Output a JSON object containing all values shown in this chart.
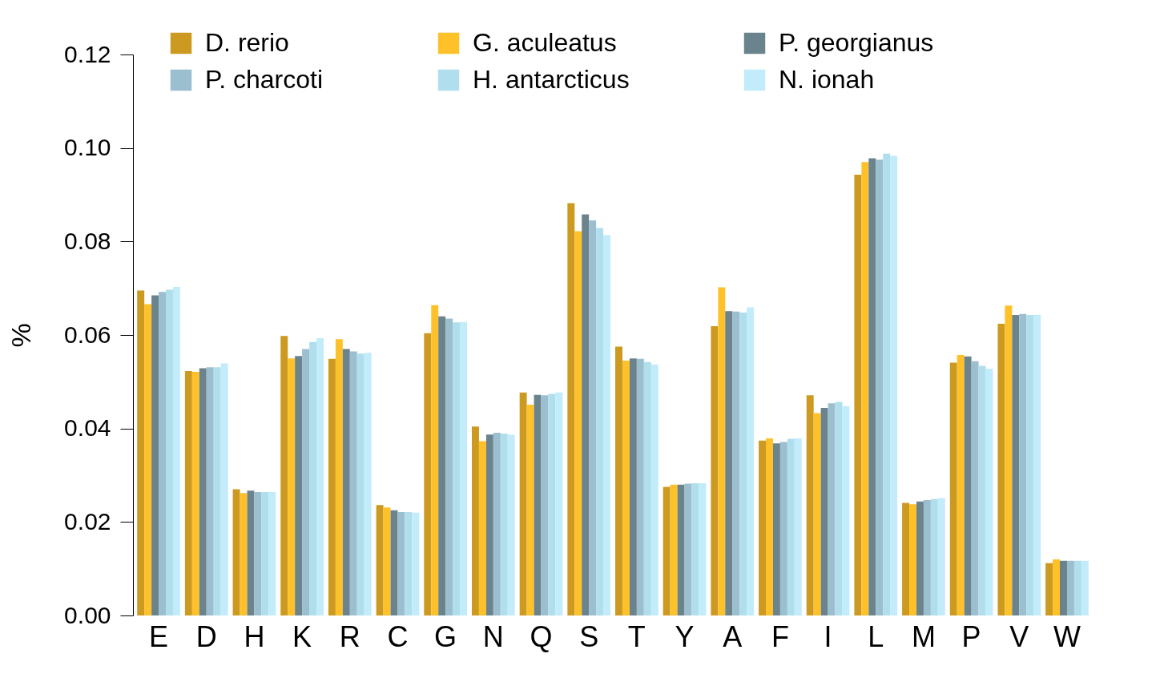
{
  "chart_data": {
    "type": "bar",
    "ylabel": "%",
    "categories": [
      "E",
      "D",
      "H",
      "K",
      "R",
      "C",
      "G",
      "N",
      "Q",
      "S",
      "T",
      "Y",
      "A",
      "F",
      "I",
      "L",
      "M",
      "P",
      "V",
      "W"
    ],
    "series": [
      {
        "name": "D. rerio",
        "color": "#cc9a20",
        "values": [
          0.0695,
          0.0523,
          0.027,
          0.0598,
          0.0549,
          0.0236,
          0.0604,
          0.0404,
          0.0477,
          0.0882,
          0.0575,
          0.0275,
          0.0619,
          0.0374,
          0.0471,
          0.0943,
          0.0241,
          0.0541,
          0.0624,
          0.0112
        ]
      },
      {
        "name": "G. aculeatus",
        "color": "#ffc12a",
        "values": [
          0.0666,
          0.0521,
          0.0262,
          0.055,
          0.0591,
          0.0231,
          0.0664,
          0.0373,
          0.0451,
          0.0822,
          0.0545,
          0.028,
          0.0702,
          0.0379,
          0.0433,
          0.097,
          0.0238,
          0.0557,
          0.0663,
          0.012
        ]
      },
      {
        "name": "P. georgianus",
        "color": "#6a838c",
        "values": [
          0.0685,
          0.0529,
          0.0267,
          0.0555,
          0.057,
          0.0225,
          0.064,
          0.0387,
          0.0472,
          0.0858,
          0.055,
          0.028,
          0.0651,
          0.0368,
          0.0444,
          0.0978,
          0.0244,
          0.0554,
          0.0643,
          0.0117
        ]
      },
      {
        "name": "P. charcoti",
        "color": "#9bbfce",
        "values": [
          0.0692,
          0.0531,
          0.0264,
          0.057,
          0.0565,
          0.0221,
          0.0635,
          0.0391,
          0.0471,
          0.0845,
          0.0549,
          0.0282,
          0.065,
          0.0371,
          0.0454,
          0.0975,
          0.0247,
          0.0544,
          0.0645,
          0.0117
        ]
      },
      {
        "name": "H. antarcticus",
        "color": "#b0deed",
        "values": [
          0.0697,
          0.0531,
          0.0264,
          0.0585,
          0.056,
          0.0221,
          0.0627,
          0.0389,
          0.0474,
          0.0829,
          0.0542,
          0.0283,
          0.0648,
          0.0378,
          0.0457,
          0.0988,
          0.0249,
          0.0534,
          0.0643,
          0.0117
        ]
      },
      {
        "name": "N. ionah",
        "color": "#c2ecfa",
        "values": [
          0.0703,
          0.0539,
          0.0264,
          0.0593,
          0.0562,
          0.022,
          0.0628,
          0.0387,
          0.0477,
          0.0814,
          0.0537,
          0.0283,
          0.0659,
          0.0379,
          0.0448,
          0.0983,
          0.0251,
          0.0528,
          0.0643,
          0.0117
        ]
      }
    ],
    "ylim": [
      0,
      0.12
    ],
    "yticks": [
      {
        "value": 0,
        "label": "0.00"
      },
      0.02,
      0.04,
      0.06,
      0.08,
      {
        "value": 0.1,
        "label": "0.10"
      },
      0.12
    ],
    "grid": false,
    "legend": "top"
  }
}
